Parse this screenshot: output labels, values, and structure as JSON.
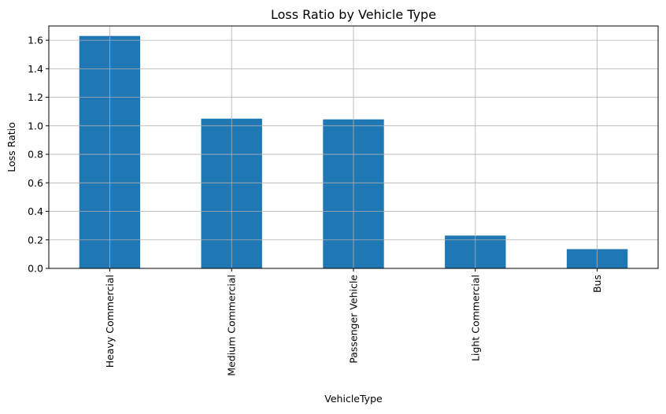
{
  "chart_data": {
    "type": "bar",
    "title": "Loss Ratio by Vehicle Type",
    "xlabel": "VehicleType",
    "ylabel": "Loss Ratio",
    "categories": [
      "Heavy Commercial",
      "Medium Commercial",
      "Passenger Vehicle",
      "Light Commercial",
      "Bus"
    ],
    "values": [
      1.63,
      1.05,
      1.045,
      0.23,
      0.135
    ],
    "ylim": [
      0,
      1.7
    ],
    "yticks": [
      "0.0",
      "0.2",
      "0.4",
      "0.6",
      "0.8",
      "1.0",
      "1.2",
      "1.4",
      "1.6"
    ],
    "grid": true,
    "bar_color": "#1f77b4",
    "grid_color": "#b0b0b0",
    "legend": "none"
  }
}
